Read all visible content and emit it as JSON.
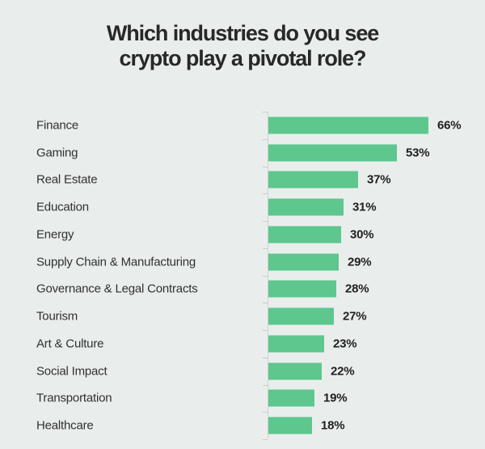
{
  "page": {
    "background_color": "#E9EEEC",
    "text_color": "#282828"
  },
  "title": {
    "line1": "Which industries do you see",
    "line2": "crypto play a pivotal role?"
  },
  "chart_data": {
    "type": "bar",
    "orientation": "horizontal",
    "title": "Which industries do you see crypto play a pivotal role?",
    "categories": [
      "Finance",
      "Gaming",
      "Real Estate",
      "Education",
      "Energy",
      "Supply Chain & Manufacturing",
      "Governance & Legal Contracts",
      "Tourism",
      "Art & Culture",
      "Social Impact",
      "Transportation",
      "Healthcare"
    ],
    "values": [
      66,
      53,
      37,
      31,
      30,
      29,
      28,
      27,
      23,
      22,
      19,
      18
    ],
    "value_labels": [
      "66%",
      "53%",
      "37%",
      "31%",
      "30%",
      "29%",
      "28%",
      "27%",
      "23%",
      "22%",
      "19%",
      "18%"
    ],
    "value_suffix": "%",
    "xlabel": "",
    "ylabel": "",
    "xlim": [
      0,
      75
    ],
    "grid": false,
    "legend": false,
    "bar_color": "#5DC78E",
    "axis_color": "#CDD4D1",
    "label_color": "#303030",
    "value_label_color": "#1F1F1F"
  }
}
